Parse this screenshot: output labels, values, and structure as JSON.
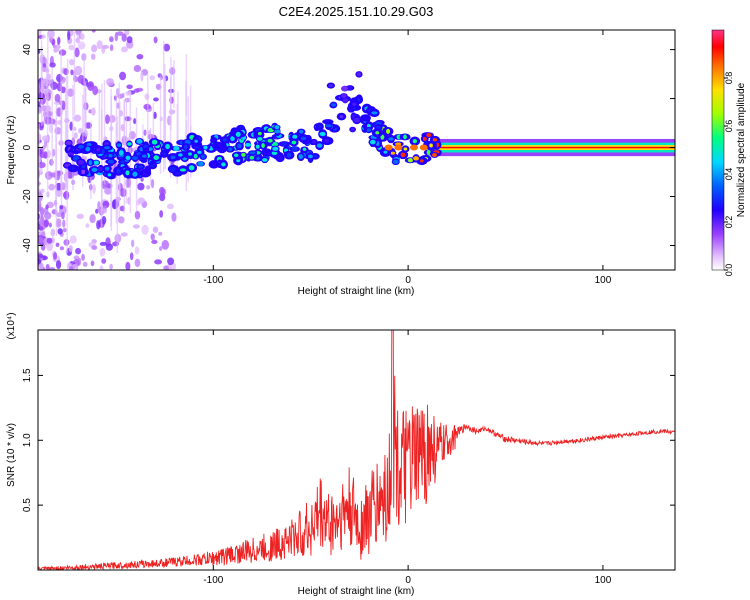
{
  "page_title": "C2E4.2025.151.10.29.G03",
  "chart_data": [
    {
      "type": "heatmap",
      "title": "C2E4.2025.151.10.29.G03",
      "xlabel": "Height of straight line (km)",
      "ylabel": "Frequency (Hz)",
      "xlim": [
        -190,
        137
      ],
      "ylim": [
        -50,
        48
      ],
      "x_ticks": [
        -100,
        0,
        100
      ],
      "x_tick_labels": [
        "-100",
        "0",
        "100"
      ],
      "y_ticks": [
        -40,
        -20,
        0,
        20,
        40
      ],
      "y_tick_labels": [
        "-40",
        "-20",
        "0",
        "20",
        "40"
      ],
      "colorbar": {
        "label": "Normalized spectral amplitude",
        "range": [
          0,
          1
        ],
        "ticks": [
          0.0,
          0.2,
          0.4,
          0.6,
          0.8
        ],
        "tick_labels": [
          "0.0",
          "0.2",
          "0.4",
          "0.6",
          "0.8"
        ],
        "colors": [
          "#ffffff",
          "#e0b0ff",
          "#7a00ff",
          "#0000ff",
          "#00c8ff",
          "#00ff66",
          "#c8ff00",
          "#ffd000",
          "#ff6000",
          "#ff0000",
          "#ff3388"
        ]
      },
      "series_description_points": [
        {
          "x": -180,
          "y": 0,
          "amplitude": 0.15
        },
        {
          "x": -160,
          "y": -5,
          "amplitude": 0.4
        },
        {
          "x": -120,
          "y": -4,
          "amplitude": 0.45
        },
        {
          "x": -80,
          "y": 2,
          "amplitude": 0.5
        },
        {
          "x": -50,
          "y": 1,
          "amplitude": 0.45
        },
        {
          "x": -30,
          "y": 20,
          "amplitude": 0.25
        },
        {
          "x": -10,
          "y": 0,
          "amplitude": 0.6
        },
        {
          "x": 0,
          "y": 0,
          "amplitude": 0.9
        },
        {
          "x": 20,
          "y": 0,
          "amplitude": 0.95
        },
        {
          "x": 100,
          "y": 0,
          "amplitude": 0.95
        },
        {
          "x": 137,
          "y": 0,
          "amplitude": 0.95
        }
      ],
      "grid": false
    },
    {
      "type": "line",
      "title": "",
      "xlabel": "Height of straight line (km)",
      "ylabel": "SNR (10 * v/v)",
      "scale_note": "(x10⁴)",
      "xlim": [
        -190,
        137
      ],
      "ylim": [
        0,
        1.85
      ],
      "x_ticks": [
        -100,
        0,
        100
      ],
      "x_tick_labels": [
        "-100",
        "0",
        "100"
      ],
      "y_ticks": [
        0.5,
        1.0,
        1.5
      ],
      "y_tick_labels": [
        "0.5",
        "1.0",
        "1.5"
      ],
      "color": "#ee2222",
      "series": [
        {
          "x": [
            -190,
            -170,
            -150,
            -130,
            -110,
            -100,
            -90,
            -80,
            -70,
            -60,
            -50,
            -45,
            -40,
            -35,
            -30,
            -25,
            -20,
            -15,
            -10,
            -8,
            -5,
            0,
            5,
            10,
            15,
            20,
            25,
            30,
            35,
            40,
            45,
            50,
            60,
            70,
            80,
            90,
            100,
            110,
            120,
            130,
            137
          ],
          "y": [
            0.01,
            0.02,
            0.03,
            0.05,
            0.07,
            0.08,
            0.12,
            0.15,
            0.18,
            0.25,
            0.3,
            0.4,
            0.35,
            0.45,
            0.5,
            0.35,
            0.45,
            0.55,
            0.6,
            1.85,
            0.75,
            0.8,
            0.85,
            0.9,
            0.95,
            1.0,
            1.05,
            1.1,
            1.08,
            1.1,
            1.05,
            1.0,
            0.98,
            0.97,
            0.99,
            1.0,
            1.02,
            1.03,
            1.05,
            1.07,
            1.06
          ],
          "envelope_max": [
            0.02,
            0.04,
            0.06,
            0.08,
            0.12,
            0.15,
            0.2,
            0.25,
            0.3,
            0.4,
            0.55,
            0.75,
            0.6,
            0.7,
            0.8,
            0.6,
            0.75,
            0.9,
            1.0,
            1.85,
            1.2,
            1.25,
            1.3,
            1.35,
            1.15,
            1.12,
            1.12,
            1.15,
            1.1,
            1.12,
            1.08,
            1.05,
            1.02,
            1.0,
            1.02,
            1.03,
            1.05,
            1.06,
            1.08,
            1.1,
            1.08
          ],
          "envelope_min": [
            0.0,
            0.0,
            0.01,
            0.02,
            0.03,
            0.03,
            0.04,
            0.05,
            0.06,
            0.08,
            0.1,
            0.12,
            0.1,
            0.12,
            0.15,
            0.05,
            0.1,
            0.15,
            0.2,
            0.4,
            0.3,
            0.35,
            0.4,
            0.5,
            0.7,
            0.85,
            0.95,
            1.05,
            1.02,
            1.05,
            1.0,
            0.95,
            0.94,
            0.93,
            0.95,
            0.96,
            0.98,
            1.0,
            1.02,
            1.03,
            1.03
          ]
        }
      ],
      "grid": false
    }
  ]
}
